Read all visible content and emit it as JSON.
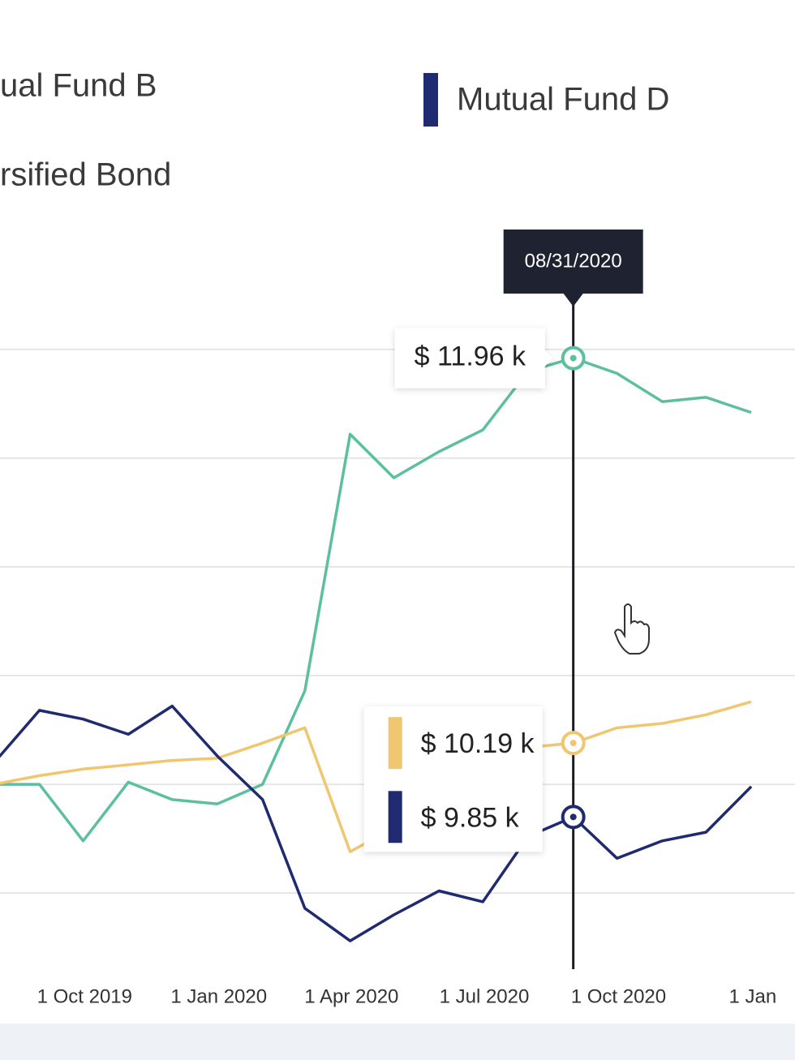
{
  "chart_data": {
    "type": "line",
    "x": [
      "2019-07-31",
      "2019-08-31",
      "2019-09-30",
      "2019-10-31",
      "2019-11-30",
      "2019-12-31",
      "2020-01-31",
      "2020-02-29",
      "2020-03-31",
      "2020-04-30",
      "2020-05-31",
      "2020-06-30",
      "2020-07-31",
      "2020-08-31",
      "2020-09-30",
      "2020-10-31",
      "2020-11-30",
      "2020-12-31"
    ],
    "xlim": [
      "2019-08-04",
      "2021-01-30"
    ],
    "xticks": [
      {
        "value": "2019-10-01",
        "label": "1 Oct 2019"
      },
      {
        "value": "2020-01-01",
        "label": "1 Jan 2020"
      },
      {
        "value": "2020-04-01",
        "label": "1 Apr 2020"
      },
      {
        "value": "2020-07-01",
        "label": "1 Jul 2020"
      },
      {
        "value": "2020-10-01",
        "label": "1 Oct 2020"
      },
      {
        "value": "2021-01-01",
        "label": "1 Jan"
      }
    ],
    "ylim": [
      9.15,
      12.6
    ],
    "grid_lines": [
      9.5,
      10,
      10.5,
      11,
      11.5,
      12
    ],
    "tooltip_date": "08/31/2020",
    "series": [
      {
        "name": "ual Fund B",
        "color": "#5cbf9d",
        "values": [
          10.0,
          10.0,
          9.74,
          10.01,
          9.93,
          9.91,
          10.0,
          10.43,
          11.61,
          11.41,
          11.53,
          11.63,
          11.9,
          11.96,
          11.89,
          11.76,
          11.78,
          11.71
        ],
        "value_labels": [
          null,
          null,
          null,
          null,
          null,
          null,
          null,
          null,
          null,
          null,
          null,
          null,
          null,
          "$ 11.96 k",
          null,
          null,
          null,
          null
        ]
      },
      {
        "name": "rsified Bond",
        "color": "#f0c670",
        "values": [
          10.0,
          10.04,
          10.07,
          10.09,
          10.11,
          10.12,
          10.19,
          10.26,
          9.69,
          9.8,
          9.92,
          10.05,
          10.17,
          10.19,
          10.26,
          10.28,
          10.32,
          10.38
        ],
        "value_labels": [
          null,
          null,
          null,
          null,
          null,
          null,
          null,
          null,
          null,
          null,
          null,
          null,
          null,
          "$ 10.19 k",
          null,
          null,
          null,
          null
        ]
      },
      {
        "name": "Mutual Fund D",
        "color": "#1f2a70",
        "values": [
          10.1,
          10.34,
          10.3,
          10.23,
          10.36,
          10.13,
          9.93,
          9.43,
          9.28,
          9.4,
          9.51,
          9.46,
          9.76,
          9.85,
          9.66,
          9.74,
          9.78,
          9.99
        ],
        "value_labels": [
          null,
          null,
          null,
          null,
          null,
          null,
          null,
          null,
          null,
          null,
          null,
          null,
          null,
          "$ 9.85 k",
          null,
          null,
          null,
          null
        ]
      }
    ]
  }
}
